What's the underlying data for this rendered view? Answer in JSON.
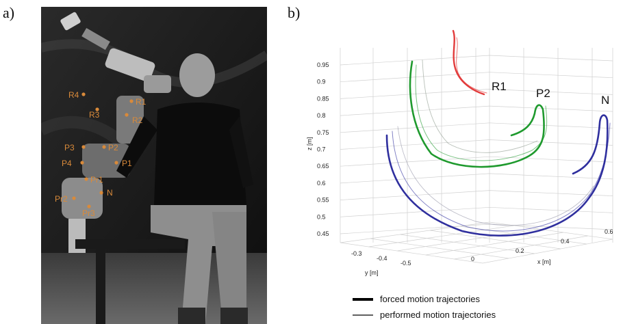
{
  "panel_a": {
    "label": "a)",
    "markers": [
      {
        "name": "R4",
        "label": "R4"
      },
      {
        "name": "R3",
        "label": "R3"
      },
      {
        "name": "R1",
        "label": "R1"
      },
      {
        "name": "R2",
        "label": "R2"
      },
      {
        "name": "P3",
        "label": "P3"
      },
      {
        "name": "P2",
        "label": "P2"
      },
      {
        "name": "P4",
        "label": "P4"
      },
      {
        "name": "P1",
        "label": "P1"
      },
      {
        "name": "Pr1",
        "label": "Pr1"
      },
      {
        "name": "Pr2",
        "label": "Pr2"
      },
      {
        "name": "N",
        "label": "N"
      },
      {
        "name": "Pr3",
        "label": "Pr3"
      }
    ],
    "marker_color": "#d98a3a"
  },
  "panel_b": {
    "label": "b)",
    "zlabel": "z [m]",
    "xlabel": "x [m]",
    "ylabel": "y [m]",
    "z_ticks": [
      "0.95",
      "0.9",
      "0.85",
      "0.8",
      "0.75",
      "0.7",
      "0.65",
      "0.6",
      "0.55",
      "0.5",
      "0.45"
    ],
    "x_ticks": [
      "0",
      "0.2",
      "0.4",
      "0.6"
    ],
    "y_ticks": [
      "-0.3",
      "-0.4",
      "-0.5"
    ],
    "traj_labels": {
      "r1": "R1",
      "p2": "P2",
      "n": "N"
    },
    "colors": {
      "r1": "#e23b3b",
      "p2": "#1f9a2e",
      "n": "#2f2f9e"
    },
    "legend": {
      "forced": "forced motion trajectories",
      "performed": "performed motion trajectories"
    }
  }
}
